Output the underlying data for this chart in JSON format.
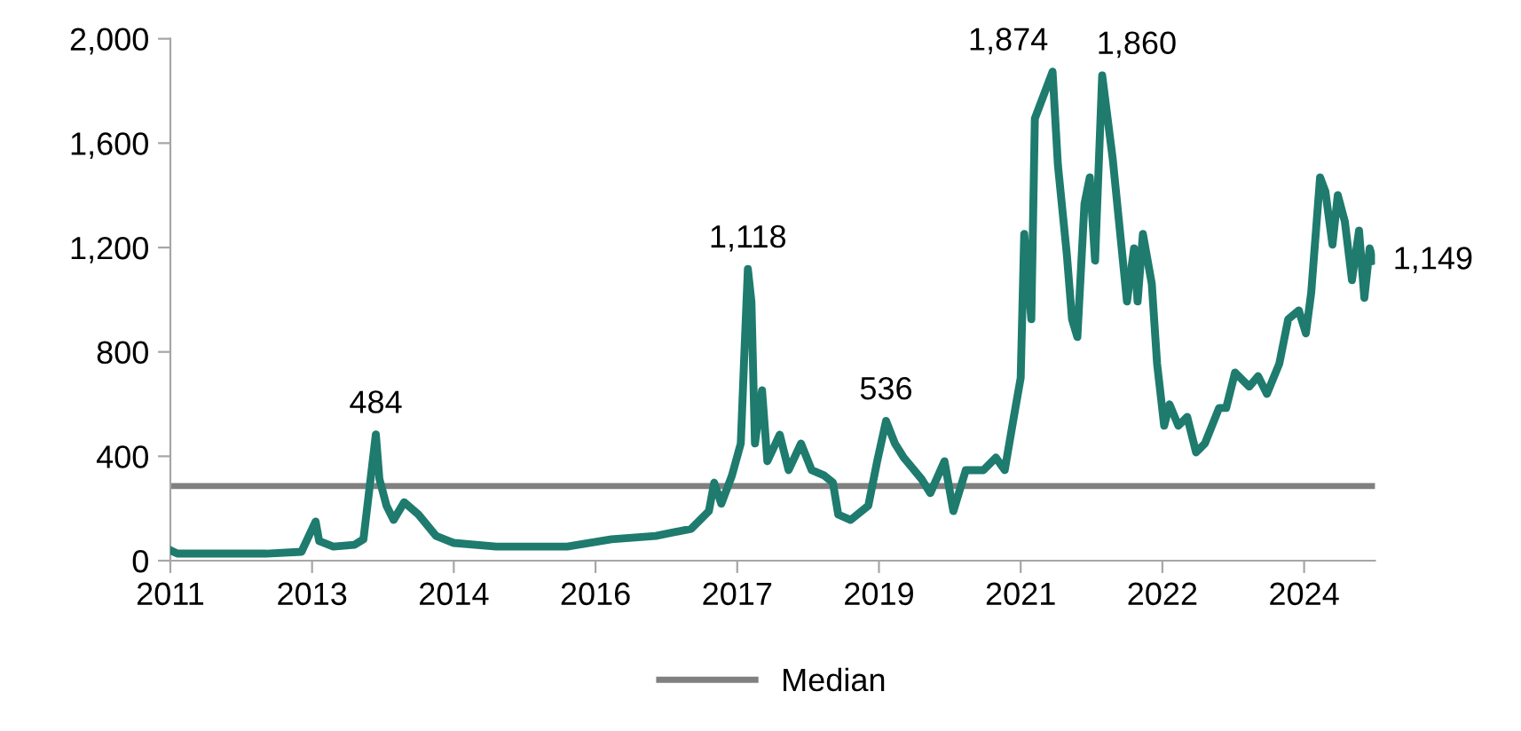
{
  "chart_data": {
    "type": "line",
    "x": [
      2011.0,
      2011.08,
      2011.28,
      2012.08,
      2012.48,
      2012.64,
      2012.68,
      2012.84,
      2013.08,
      2013.18,
      2013.32,
      2013.36,
      2013.44,
      2013.52,
      2013.64,
      2013.8,
      2014.0,
      2014.2,
      2014.68,
      2015.48,
      2015.98,
      2016.48,
      2016.88,
      2017.08,
      2017.14,
      2017.22,
      2017.34,
      2017.44,
      2017.48,
      2017.52,
      2017.56,
      2017.6,
      2017.68,
      2017.74,
      2017.88,
      2017.98,
      2018.12,
      2018.24,
      2018.38,
      2018.48,
      2018.54,
      2018.68,
      2018.88,
      2018.98,
      2019.08,
      2019.18,
      2019.28,
      2019.48,
      2019.58,
      2019.74,
      2019.84,
      2019.98,
      2020.18,
      2020.32,
      2020.42,
      2020.54,
      2020.6,
      2020.64,
      2020.72,
      2020.76,
      2020.96,
      2021.02,
      2021.12,
      2021.18,
      2021.24,
      2021.32,
      2021.38,
      2021.44,
      2021.52,
      2021.64,
      2021.72,
      2021.8,
      2021.88,
      2021.92,
      2021.98,
      2022.08,
      2022.14,
      2022.22,
      2022.28,
      2022.38,
      2022.48,
      2022.58,
      2022.68,
      2022.84,
      2022.92,
      2023.02,
      2023.18,
      2023.28,
      2023.38,
      2023.52,
      2023.62,
      2023.74,
      2023.82,
      2023.88,
      2023.98,
      2024.04,
      2024.12,
      2024.18,
      2024.26,
      2024.34,
      2024.42,
      2024.48,
      2024.54,
      2024.58
    ],
    "series": [
      {
        "color": "#1e7b6e",
        "values": [
          40,
          27,
          27,
          27,
          34,
          150,
          75,
          54,
          61,
          82,
          484,
          313,
          211,
          156,
          224,
          177,
          95,
          68,
          54,
          54,
          82,
          95,
          122,
          190,
          299,
          218,
          326,
          449,
          789,
          1118,
          993,
          449,
          653,
          381,
          483,
          347,
          449,
          347,
          327,
          299,
          177,
          156,
          211,
          381,
          536,
          449,
          395,
          313,
          259,
          381,
          190,
          347,
          347,
          395,
          347,
          585,
          700,
          1252,
          925,
          1694,
          1874,
          1517,
          1177,
          925,
          857,
          1367,
          1469,
          1150,
          1860,
          1537,
          1265,
          993,
          1197,
          993,
          1252,
          1061,
          755,
          517,
          599,
          517,
          551,
          415,
          449,
          585,
          585,
          721,
          667,
          707,
          639,
          755,
          925,
          959,
          871,
          1027,
          1469,
          1415,
          1211,
          1401,
          1299,
          1075,
          1265,
          1007,
          1197,
          1149
        ]
      }
    ],
    "xlim": [
      2011.0,
      2024.6
    ],
    "xticks": [
      {
        "value": 2011.0,
        "label": "2011"
      },
      {
        "value": 2012.6,
        "label": "2013"
      },
      {
        "value": 2014.2,
        "label": "2014"
      },
      {
        "value": 2015.8,
        "label": "2016"
      },
      {
        "value": 2017.4,
        "label": "2017"
      },
      {
        "value": 2019.0,
        "label": "2019"
      },
      {
        "value": 2020.6,
        "label": "2021"
      },
      {
        "value": 2022.2,
        "label": "2022"
      },
      {
        "value": 2023.8,
        "label": "2024"
      }
    ],
    "ylim": [
      0,
      2000
    ],
    "yticks": [
      0,
      400,
      800,
      {
        "value": 1200,
        "label": "1,200"
      },
      {
        "value": 1600,
        "label": "1,600"
      },
      {
        "value": 2000,
        "label": "2,000"
      }
    ],
    "ref_lines": [
      {
        "axis": "y",
        "value": 286,
        "label": "Median",
        "color": "#808080"
      }
    ],
    "annotations": [
      {
        "text": "484",
        "x": 2013.32,
        "y": 484
      },
      {
        "text": "1,118",
        "x": 2017.52,
        "y": 1118
      },
      {
        "text": "536",
        "x": 2019.08,
        "y": 536
      },
      {
        "text": "1,874",
        "x": 2020.96,
        "y": 1874
      },
      {
        "text": "1,860",
        "x": 2021.52,
        "y": 1860
      },
      {
        "text": "1,149",
        "x": 2024.58,
        "y": 1149
      }
    ],
    "legend": "bottom",
    "grid": false,
    "marker": "none",
    "line_style": "solid"
  }
}
